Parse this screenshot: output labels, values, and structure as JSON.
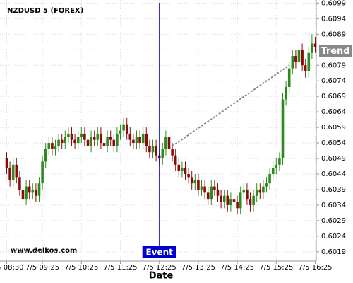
{
  "chart_data": {
    "type": "candlestick",
    "title": "NZDUSD 5 (FOREX)",
    "x_label": "Date",
    "watermark": "www.delkos.com",
    "x": [
      "7/5 08:30",
      "7/5 08:35",
      "7/5 08:40",
      "7/5 08:45",
      "7/5 08:50",
      "7/5 08:55",
      "7/5 09:00",
      "7/5 09:05",
      "7/5 09:10",
      "7/5 09:15",
      "7/5 09:20",
      "7/5 09:25",
      "7/5 09:30",
      "7/5 09:35",
      "7/5 09:40",
      "7/5 09:45",
      "7/5 09:50",
      "7/5 09:55",
      "7/5 10:00",
      "7/5 10:05",
      "7/5 10:10",
      "7/5 10:15",
      "7/5 10:20",
      "7/5 10:25",
      "7/5 10:30",
      "7/5 10:35",
      "7/5 10:40",
      "7/5 10:45",
      "7/5 10:50",
      "7/5 10:55",
      "7/5 11:00",
      "7/5 11:05",
      "7/5 11:10",
      "7/5 11:15",
      "7/5 11:20",
      "7/5 11:25",
      "7/5 11:30",
      "7/5 11:35",
      "7/5 11:40",
      "7/5 11:45",
      "7/5 11:50",
      "7/5 11:55",
      "7/5 12:00",
      "7/5 12:05",
      "7/5 12:10",
      "7/5 12:15",
      "7/5 12:20",
      "7/5 12:25",
      "7/5 12:30",
      "7/5 12:35",
      "7/5 12:40",
      "7/5 12:45",
      "7/5 12:50",
      "7/5 12:55",
      "7/5 13:00",
      "7/5 13:05",
      "7/5 13:10",
      "7/5 13:15",
      "7/5 13:20",
      "7/5 13:25",
      "7/5 13:30",
      "7/5 13:35",
      "7/5 13:40",
      "7/5 13:45",
      "7/5 13:50",
      "7/5 13:55",
      "7/5 14:00",
      "7/5 14:05",
      "7/5 14:10",
      "7/5 14:15",
      "7/5 14:20",
      "7/5 14:25",
      "7/5 14:30",
      "7/5 14:35",
      "7/5 14:40",
      "7/5 14:45",
      "7/5 14:50",
      "7/5 14:55",
      "7/5 15:00",
      "7/5 15:05",
      "7/5 15:10",
      "7/5 15:15",
      "7/5 15:20",
      "7/5 15:25",
      "7/5 15:30",
      "7/5 15:35",
      "7/5 15:40",
      "7/5 15:45",
      "7/5 15:50",
      "7/5 15:55",
      "7/5 16:00",
      "7/5 16:05",
      "7/5 16:10",
      "7/5 16:15",
      "7/5 16:20",
      "7/5 16:25"
    ],
    "open": [
      0.6049,
      0.6046,
      0.6042,
      0.6047,
      0.6043,
      0.6039,
      0.6036,
      0.604,
      0.6038,
      0.6039,
      0.6037,
      0.6041,
      0.6048,
      0.6052,
      0.6054,
      0.6052,
      0.6053,
      0.6055,
      0.6054,
      0.6056,
      0.6057,
      0.6055,
      0.6054,
      0.6056,
      0.6057,
      0.6055,
      0.6053,
      0.6056,
      0.6055,
      0.6057,
      0.6054,
      0.6053,
      0.6056,
      0.6055,
      0.6053,
      0.6057,
      0.6058,
      0.606,
      0.6057,
      0.6055,
      0.6054,
      0.6056,
      0.6054,
      0.6057,
      0.6053,
      0.6051,
      0.6053,
      0.605,
      0.6049,
      0.6052,
      0.6056,
      0.6052,
      0.605,
      0.6047,
      0.6045,
      0.6046,
      0.6044,
      0.6043,
      0.6041,
      0.6042,
      0.6039,
      0.604,
      0.6038,
      0.6036,
      0.604,
      0.6039,
      0.6037,
      0.6035,
      0.6037,
      0.6034,
      0.6036,
      0.6035,
      0.6033,
      0.6038,
      0.6039,
      0.6036,
      0.6034,
      0.6037,
      0.6039,
      0.6038,
      0.604,
      0.6041,
      0.6044,
      0.6046,
      0.6047,
      0.6049,
      0.6068,
      0.6072,
      0.6078,
      0.6082,
      0.608,
      0.6084,
      0.6079,
      0.6077,
      0.6083,
      0.6086
    ],
    "high": [
      0.6051,
      0.6048,
      0.6049,
      0.6049,
      0.6045,
      0.6041,
      0.6042,
      0.6042,
      0.6041,
      0.6041,
      0.6043,
      0.605,
      0.6054,
      0.6056,
      0.6056,
      0.6055,
      0.6057,
      0.6057,
      0.6058,
      0.6059,
      0.6059,
      0.6057,
      0.6058,
      0.6059,
      0.6059,
      0.6057,
      0.6058,
      0.6058,
      0.6059,
      0.6059,
      0.6056,
      0.6058,
      0.6058,
      0.6057,
      0.6059,
      0.606,
      0.6062,
      0.6062,
      0.6059,
      0.6057,
      0.6058,
      0.6058,
      0.6059,
      0.6059,
      0.6055,
      0.6055,
      0.6055,
      0.6052,
      0.6054,
      0.6058,
      0.6058,
      0.6054,
      0.6052,
      0.6049,
      0.6048,
      0.6048,
      0.6046,
      0.6045,
      0.6044,
      0.6044,
      0.6042,
      0.6042,
      0.604,
      0.6042,
      0.6042,
      0.6041,
      0.6039,
      0.6039,
      0.6039,
      0.6038,
      0.6038,
      0.6037,
      0.604,
      0.6041,
      0.6041,
      0.6038,
      0.6039,
      0.6041,
      0.6041,
      0.6042,
      0.6043,
      0.6046,
      0.6048,
      0.6049,
      0.6051,
      0.607,
      0.6074,
      0.608,
      0.6084,
      0.6084,
      0.6086,
      0.6086,
      0.6081,
      0.6085,
      0.6089,
      0.6088
    ],
    "low": [
      0.6044,
      0.604,
      0.604,
      0.6041,
      0.6037,
      0.6034,
      0.6034,
      0.6036,
      0.6036,
      0.6035,
      0.6035,
      0.6039,
      0.6046,
      0.605,
      0.605,
      0.605,
      0.6051,
      0.6052,
      0.6052,
      0.6054,
      0.6053,
      0.6052,
      0.6052,
      0.6054,
      0.6053,
      0.6051,
      0.6051,
      0.6053,
      0.6053,
      0.6052,
      0.6051,
      0.6051,
      0.6053,
      0.6051,
      0.6051,
      0.6055,
      0.6056,
      0.6055,
      0.6053,
      0.6052,
      0.6052,
      0.6052,
      0.6052,
      0.6051,
      0.6049,
      0.6049,
      0.6048,
      0.6047,
      0.6047,
      0.605,
      0.605,
      0.6048,
      0.6045,
      0.6043,
      0.6043,
      0.6042,
      0.6041,
      0.6039,
      0.6039,
      0.6037,
      0.6037,
      0.6036,
      0.6034,
      0.6034,
      0.6037,
      0.6035,
      0.6033,
      0.6033,
      0.6032,
      0.6032,
      0.6033,
      0.6031,
      0.6031,
      0.6036,
      0.6034,
      0.6032,
      0.6032,
      0.6035,
      0.6036,
      0.6036,
      0.6038,
      0.6039,
      0.6042,
      0.6044,
      0.6045,
      0.6047,
      0.6066,
      0.607,
      0.6076,
      0.6078,
      0.6078,
      0.6077,
      0.6075,
      0.6075,
      0.6081,
      0.6083
    ],
    "close": [
      0.6046,
      0.6042,
      0.6047,
      0.6043,
      0.6039,
      0.6036,
      0.604,
      0.6038,
      0.6039,
      0.6037,
      0.6041,
      0.6048,
      0.6052,
      0.6054,
      0.6052,
      0.6053,
      0.6055,
      0.6054,
      0.6056,
      0.6057,
      0.6055,
      0.6054,
      0.6056,
      0.6057,
      0.6055,
      0.6053,
      0.6056,
      0.6055,
      0.6057,
      0.6054,
      0.6053,
      0.6056,
      0.6055,
      0.6053,
      0.6057,
      0.6058,
      0.606,
      0.6057,
      0.6055,
      0.6054,
      0.6056,
      0.6054,
      0.6057,
      0.6053,
      0.6051,
      0.6053,
      0.605,
      0.6049,
      0.6052,
      0.6056,
      0.6052,
      0.605,
      0.6047,
      0.6045,
      0.6046,
      0.6044,
      0.6043,
      0.6041,
      0.6042,
      0.6039,
      0.604,
      0.6038,
      0.6036,
      0.604,
      0.6039,
      0.6037,
      0.6035,
      0.6037,
      0.6034,
      0.6036,
      0.6035,
      0.6033,
      0.6038,
      0.6039,
      0.6036,
      0.6034,
      0.6037,
      0.6039,
      0.6038,
      0.604,
      0.6041,
      0.6044,
      0.6046,
      0.6047,
      0.6049,
      0.6068,
      0.6072,
      0.6078,
      0.6082,
      0.608,
      0.6084,
      0.6079,
      0.6077,
      0.6083,
      0.6086,
      0.6085
    ],
    "up_color": "#2d8a1e",
    "down_color": "#8b0a0a",
    "xticks": [
      "7/5 08:30",
      "7/5 09:25",
      "7/5 10:25",
      "7/5 11:25",
      "7/5 12:25",
      "7/5 13:25",
      "7/5 14:25",
      "7/5 15:25",
      "7/5 16:25"
    ],
    "ylim": [
      0.6016,
      0.61
    ],
    "yticks": [
      0.6019,
      0.6024,
      0.6029,
      0.6034,
      0.6039,
      0.6044,
      0.6049,
      0.6054,
      0.6059,
      0.6064,
      0.6069,
      0.6074,
      0.6079,
      0.6084,
      0.6089,
      0.6094,
      0.6099
    ],
    "grid": true,
    "event": {
      "label": "Event",
      "x": "7/5 12:25",
      "color": "#0000cc"
    },
    "trend": {
      "label": "Trend",
      "start": {
        "x": "7/5 12:45",
        "y": 0.6053
      },
      "end": {
        "x": "7/5 15:45",
        "y": 0.6079
      },
      "color": "#888888"
    }
  }
}
